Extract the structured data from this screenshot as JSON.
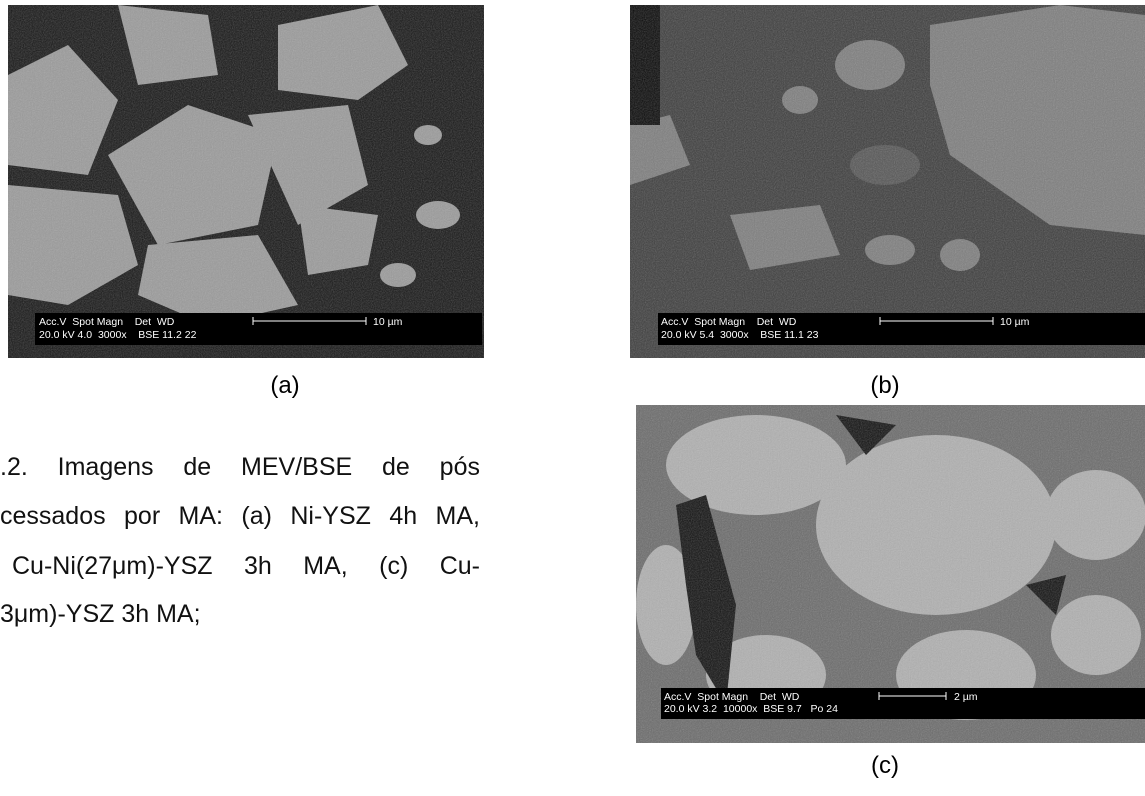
{
  "figures": [
    {
      "label": "(a)",
      "info_header": "Acc.V  Spot Magn    Det  WD",
      "info_values": "20.0 kV 4.0  3000x    BSE 11.2 22",
      "scale": "10 µm"
    },
    {
      "label": "(b)",
      "info_header": "Acc.V  Spot Magn    Det  WD",
      "info_values": "20.0 kV 5.4  3000x    BSE 11.1 23",
      "scale": "10 µm"
    },
    {
      "label": "(c)",
      "info_header": "Acc.V  Spot Magn    Det  WD",
      "info_values": "20.0 kV 3.2  10000x  BSE 9.7   Po 24",
      "scale": "2 µm"
    }
  ],
  "caption": {
    "lines": [
      ".2. Imagens de MEV/BSE de pós",
      "cessados por MA: (a) Ni-YSZ 4h MA,",
      "Cu-Ni(27μm)-YSZ 3h MA, (c) Cu-",
      "3μm)-YSZ 3h MA;"
    ]
  }
}
